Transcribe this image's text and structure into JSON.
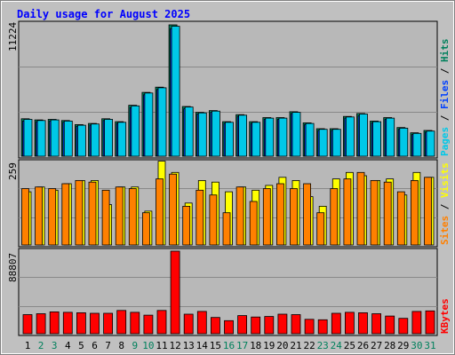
{
  "title": "Daily usage for August 2025",
  "colors": {
    "background": "#c0c0c0",
    "plot": "#b8b8b8",
    "hits": "#00805c",
    "files": "#0040ff",
    "pages": "#00c8e8",
    "visits": "#ffff00",
    "sites": "#ff8000",
    "kbytes": "#ff0000",
    "title": "#0000ff",
    "weekend_day": "#00805c",
    "weekday": "#000000"
  },
  "labels": {
    "top_max": "11224",
    "mid_max": "259",
    "bot_max": "88807",
    "top_legend": [
      "Pages",
      "Files",
      "Hits"
    ],
    "mid_legend": [
      "Sites",
      "Visits"
    ],
    "bot_legend": [
      "KBytes"
    ]
  },
  "chart_data": [
    {
      "type": "bar",
      "title": "Daily usage for August 2025",
      "categories": [
        "1",
        "2",
        "3",
        "4",
        "5",
        "6",
        "7",
        "8",
        "9",
        "10",
        "11",
        "12",
        "13",
        "14",
        "15",
        "16",
        "17",
        "18",
        "19",
        "20",
        "21",
        "22",
        "23",
        "24",
        "25",
        "26",
        "27",
        "28",
        "29",
        "30",
        "31"
      ],
      "weekend_days": [
        "2",
        "3",
        "9",
        "10",
        "16",
        "17",
        "23",
        "24",
        "30",
        "31"
      ],
      "ylim": [
        0,
        11224
      ],
      "y_max_label": "11224",
      "series": [
        {
          "name": "Hits",
          "values": [
            3200,
            3100,
            3150,
            3050,
            2700,
            2800,
            3200,
            2950,
            4350,
            5450,
            5900,
            11224,
            4250,
            3750,
            3900,
            2950,
            3550,
            2950,
            3300,
            3300,
            3800,
            2850,
            2350,
            2350,
            3400,
            3650,
            3000,
            3300,
            2450,
            2000,
            2200
          ]
        },
        {
          "name": "Files",
          "values": [
            3000,
            2950,
            3000,
            2900,
            2550,
            2650,
            3050,
            2800,
            4150,
            5250,
            5700,
            10900,
            4050,
            3600,
            3750,
            2800,
            3400,
            2800,
            3150,
            3150,
            3650,
            2700,
            2200,
            2200,
            3250,
            3450,
            2850,
            3150,
            2300,
            1850,
            2050
          ]
        },
        {
          "name": "Pages",
          "values": [
            3150,
            3050,
            3100,
            3000,
            2650,
            2750,
            3150,
            2900,
            4300,
            5400,
            5850,
            11100,
            4200,
            3700,
            3850,
            2900,
            3500,
            2900,
            3250,
            3250,
            3750,
            2800,
            2300,
            2300,
            3350,
            3600,
            2950,
            3250,
            2400,
            1950,
            2150
          ]
        }
      ]
    },
    {
      "type": "bar",
      "categories": [
        "1",
        "2",
        "3",
        "4",
        "5",
        "6",
        "7",
        "8",
        "9",
        "10",
        "11",
        "12",
        "13",
        "14",
        "15",
        "16",
        "17",
        "18",
        "19",
        "20",
        "21",
        "22",
        "23",
        "24",
        "25",
        "26",
        "27",
        "28",
        "29",
        "30",
        "31"
      ],
      "ylim": [
        0,
        259
      ],
      "y_max_label": "259",
      "series": [
        {
          "name": "Visits",
          "values": [
            165,
            180,
            170,
            190,
            200,
            200,
            125,
            180,
            180,
            105,
            260,
            225,
            130,
            200,
            195,
            165,
            180,
            170,
            185,
            210,
            200,
            150,
            120,
            205,
            225,
            215,
            200,
            205,
            155,
            225,
            210
          ]
        },
        {
          "name": "Sites",
          "values": [
            175,
            180,
            175,
            190,
            200,
            195,
            170,
            180,
            175,
            100,
            205,
            220,
            120,
            170,
            155,
            100,
            180,
            135,
            175,
            190,
            175,
            190,
            100,
            175,
            205,
            225,
            200,
            195,
            165,
            200,
            210
          ]
        }
      ]
    },
    {
      "type": "bar",
      "categories": [
        "1",
        "2",
        "3",
        "4",
        "5",
        "6",
        "7",
        "8",
        "9",
        "10",
        "11",
        "12",
        "13",
        "14",
        "15",
        "16",
        "17",
        "18",
        "19",
        "20",
        "21",
        "22",
        "23",
        "24",
        "25",
        "26",
        "27",
        "28",
        "29",
        "30",
        "31"
      ],
      "ylim": [
        0,
        88807
      ],
      "y_max_label": "88807",
      "series": [
        {
          "name": "KBytes",
          "values": [
            20500,
            21500,
            23500,
            23000,
            22500,
            22000,
            22000,
            25000,
            23000,
            20000,
            25000,
            88807,
            21000,
            24000,
            17500,
            14000,
            19500,
            18000,
            18500,
            21000,
            20500,
            15500,
            15000,
            22000,
            23000,
            22500,
            21500,
            19000,
            16500,
            24000,
            24500
          ]
        }
      ]
    }
  ]
}
